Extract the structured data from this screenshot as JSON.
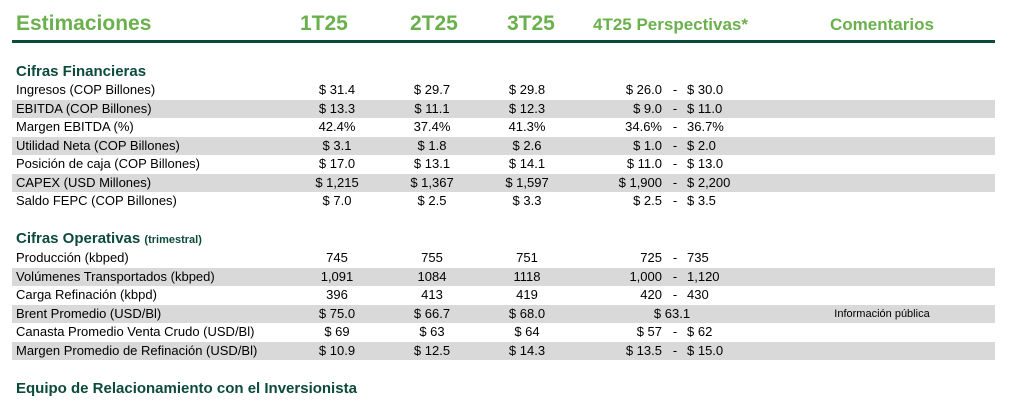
{
  "header": {
    "title": "Estimaciones",
    "col1": "1T25",
    "col2": "2T25",
    "col3": "3T25",
    "col4": "4T25 Perspectivas*",
    "col5": "Comentarios"
  },
  "financial": {
    "title": "Cifras Financieras",
    "rows": [
      {
        "label": "Ingresos (COP Billones)",
        "q1": "$ 31.4",
        "q2": "$ 29.7",
        "q3": "$ 29.8",
        "lo": "$ 26.0",
        "dash": "-",
        "hi": "$ 30.0",
        "comment": ""
      },
      {
        "label": "EBITDA (COP Billones)",
        "q1": "$ 13.3",
        "q2": "$ 11.1",
        "q3": "$ 12.3",
        "lo": "$ 9.0",
        "dash": "-",
        "hi": "$ 11.0",
        "comment": ""
      },
      {
        "label": "Margen EBITDA (%)",
        "q1": "42.4%",
        "q2": "37.4%",
        "q3": "41.3%",
        "lo": "34.6%",
        "dash": "-",
        "hi": "36.7%",
        "comment": ""
      },
      {
        "label": "Utilidad Neta (COP Billones)",
        "q1": "$ 3.1",
        "q2": "$ 1.8",
        "q3": "$ 2.6",
        "lo": "$ 1.0",
        "dash": "-",
        "hi": "$ 2.0",
        "comment": ""
      },
      {
        "label": "Posición de caja (COP Billones)",
        "q1": "$ 17.0",
        "q2": "$ 13.1",
        "q3": "$ 14.1",
        "lo": "$ 11.0",
        "dash": "-",
        "hi": "$ 13.0",
        "comment": ""
      },
      {
        "label": "CAPEX (USD Millones)",
        "q1": "$ 1,215",
        "q2": "$ 1,367",
        "q3": "$ 1,597",
        "lo": "$ 1,900",
        "dash": "-",
        "hi": "$ 2,200",
        "comment": ""
      },
      {
        "label": "Saldo FEPC (COP Billones)",
        "q1": "$ 7.0",
        "q2": "$ 2.5",
        "q3": "$ 3.3",
        "lo": "$ 2.5",
        "dash": "-",
        "hi": "$ 3.5",
        "comment": ""
      }
    ]
  },
  "operational": {
    "title": "Cifras Operativas",
    "subtitle": "(trimestral)",
    "rows": [
      {
        "label": "Producción (kbped)",
        "q1": "745",
        "q2": "755",
        "q3": "751",
        "lo": "725",
        "dash": "-",
        "hi": "735",
        "comment": ""
      },
      {
        "label": "Volúmenes Transportados (kbped)",
        "q1": "1,091",
        "q2": "1084",
        "q3": "1118",
        "lo": "1,000",
        "dash": "-",
        "hi": "1,120",
        "comment": ""
      },
      {
        "label": "Carga Refinación (kbpd)",
        "q1": "396",
        "q2": "413",
        "q3": "419",
        "lo": "420",
        "dash": "-",
        "hi": "430",
        "comment": ""
      },
      {
        "label": "Brent Promedio (USD/Bl)",
        "q1": "$ 75.0",
        "q2": "$ 66.7",
        "q3": "$ 68.0",
        "single": "$ 63.1",
        "comment": "Información pública"
      },
      {
        "label": "Canasta Promedio Venta Crudo (USD/Bl)",
        "q1": "$ 69",
        "q2": "$ 63",
        "q3": "$ 64",
        "lo": "$ 57",
        "dash": "-",
        "hi": "$ 62",
        "comment": ""
      },
      {
        "label": "Margen Promedio de Refinación (USD/Bl)",
        "q1": "$ 10.9",
        "q2": "$ 12.5",
        "q3": "$ 14.3",
        "lo": "$ 13.5",
        "dash": "-",
        "hi": "$ 15.0",
        "comment": ""
      }
    ]
  },
  "investor": {
    "title": "Equipo de Relacionamiento con el Inversionista"
  }
}
